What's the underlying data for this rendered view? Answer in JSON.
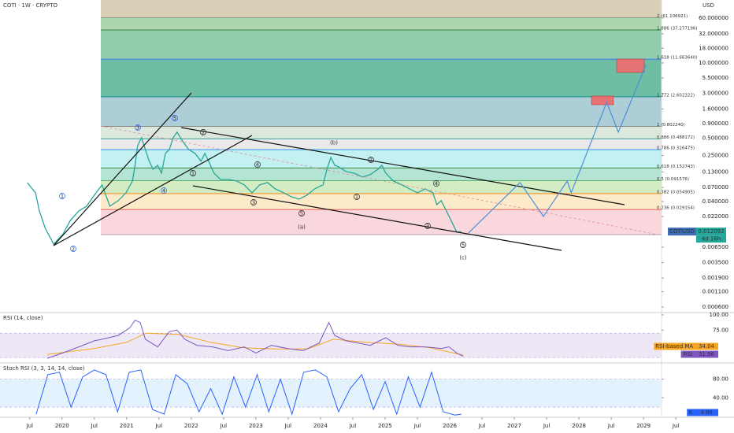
{
  "chart_data": [
    {
      "type": "line",
      "title": "COTI · 1W · CRYPTO",
      "currency": "USD",
      "log_scale": true,
      "xlim": [
        2019.04,
        2030.4
      ],
      "xticks": [
        {
          "value": 2019.5,
          "label": "Jul"
        },
        2020,
        {
          "value": 2020.5,
          "label": "Jul"
        },
        2021,
        {
          "value": 2021.5,
          "label": "Jul"
        },
        2022,
        {
          "value": 2022.5,
          "label": "Jul"
        },
        2023,
        {
          "value": 2023.5,
          "label": "Jul"
        },
        2024,
        {
          "value": 2024.5,
          "label": "Jul"
        },
        2025,
        {
          "value": 2025.5,
          "label": "Jul"
        },
        2026,
        {
          "value": 2026.5,
          "label": "Jul"
        },
        2027,
        {
          "value": 2027.5,
          "label": "Jul"
        },
        2028,
        {
          "value": 2028.5,
          "label": "Jul"
        },
        2029,
        {
          "value": 2029.5,
          "label": "Jul"
        }
      ],
      "ylim": [
        0.00048,
        123
      ],
      "yticks": [
        {
          "value": 60,
          "label": "60.000000"
        },
        {
          "value": 32,
          "label": "32.000000"
        },
        {
          "value": 18,
          "label": "18.000000"
        },
        {
          "value": 10,
          "label": "10.000000"
        },
        {
          "value": 5.5,
          "label": "5.500000"
        },
        {
          "value": 3,
          "label": "3.000000"
        },
        {
          "value": 1.6,
          "label": "1.600000"
        },
        {
          "value": 0.9,
          "label": "0.900000"
        },
        {
          "value": 0.5,
          "label": "0.500000"
        },
        {
          "value": 0.25,
          "label": "0.250000"
        },
        {
          "value": 0.13,
          "label": "0.130000"
        },
        {
          "value": 0.07,
          "label": "0.070000"
        },
        {
          "value": 0.04,
          "label": "0.040000"
        },
        {
          "value": 0.022,
          "label": "0.022000"
        },
        {
          "value": 0.0065,
          "label": "0.006500"
        },
        {
          "value": 0.0035,
          "label": "0.003500"
        },
        {
          "value": 0.0019,
          "label": "0.001900"
        },
        {
          "value": 0.0011,
          "label": "0.001100"
        },
        {
          "value": 0.0006,
          "label": "0.000600"
        }
      ],
      "series": [
        {
          "name": "COTIUSD",
          "color": "#26a69a",
          "x": [
            2019.46,
            2019.59,
            2019.65,
            2019.74,
            2019.87,
            2020.01,
            2020.13,
            2020.26,
            2020.38,
            2020.5,
            2020.62,
            2020.74,
            2020.87,
            2020.99,
            2021.09,
            2021.13,
            2021.17,
            2021.23,
            2021.29,
            2021.35,
            2021.41,
            2021.48,
            2021.54,
            2021.6,
            2021.66,
            2021.72,
            2021.78,
            2021.87,
            2021.96,
            2022.06,
            2022.15,
            2022.21,
            2022.27,
            2022.35,
            2022.45,
            2022.57,
            2022.7,
            2022.82,
            2022.94,
            2023.06,
            2023.18,
            2023.3,
            2023.43,
            2023.55,
            2023.67,
            2023.79,
            2023.91,
            2024.04,
            2024.1,
            2024.16,
            2024.22,
            2024.28,
            2024.4,
            2024.52,
            2024.65,
            2024.77,
            2024.89,
            2024.95,
            2025.01,
            2025.13,
            2025.26,
            2025.38,
            2025.5,
            2025.62,
            2025.74,
            2025.8,
            2025.87,
            2025.93,
            2025.99,
            2026.05,
            2026.11,
            2026.18
          ],
          "values": [
            0.0853,
            0.0567,
            0.0275,
            0.0138,
            0.00738,
            0.0107,
            0.0189,
            0.0275,
            0.0333,
            0.0516,
            0.0777,
            0.0333,
            0.0414,
            0.0567,
            0.0908,
            0.17,
            0.372,
            0.509,
            0.318,
            0.199,
            0.145,
            0.17,
            0.124,
            0.272,
            0.318,
            0.509,
            0.634,
            0.435,
            0.318,
            0.272,
            0.199,
            0.272,
            0.199,
            0.124,
            0.0966,
            0.0966,
            0.0908,
            0.0777,
            0.0567,
            0.0777,
            0.0853,
            0.0664,
            0.0567,
            0.0484,
            0.0441,
            0.0516,
            0.0664,
            0.0777,
            0.145,
            0.232,
            0.17,
            0.16,
            0.132,
            0.124,
            0.106,
            0.117,
            0.145,
            0.17,
            0.124,
            0.0908,
            0.0777,
            0.0664,
            0.0567,
            0.0664,
            0.0567,
            0.0354,
            0.0414,
            0.0303,
            0.0221,
            0.0162,
            0.0118,
            0.0121
          ]
        }
      ],
      "last_price": 0.012092,
      "countdown": "4d 16h",
      "projection": {
        "color": "#4a90d9",
        "x": [
          2026.29,
          2027.09,
          2027.45,
          2027.82,
          2027.88,
          2028.43,
          2028.61,
          2029.04
        ],
        "values": [
          0.01146,
          0.0853,
          0.0221,
          0.0908,
          0.0567,
          2.09,
          0.634,
          9.42
        ]
      },
      "fib_top_fill": "#d9cfb6",
      "fib_levels": [
        {
          "label": "2 (61.106921)",
          "price": 61.106921,
          "color": "#888888",
          "fill": "#9dcf9f"
        },
        {
          "label": "1.886 (37.277196)",
          "price": 37.277196,
          "color": "#2e7d32",
          "fill": "#80c4a0"
        },
        {
          "label": "1.618 (11.663640)",
          "price": 11.66364,
          "color": "#2962ff",
          "fill": "#55b295"
        },
        {
          "label": "1.272 (2.602322)",
          "price": 2.602322,
          "color": "#00897b",
          "fill": "#9fc4d0"
        },
        {
          "label": "1 (0.802240)",
          "price": 0.80224,
          "color": "#777777",
          "fill": "#d6e4d6"
        },
        {
          "label": "0.886 (0.488172)",
          "price": 0.488172,
          "color": "#00897b",
          "fill": "#e6e6e6"
        },
        {
          "label": "0.786 (0.316475)",
          "price": 0.316475,
          "color": "#1e88e5",
          "fill": "#b9eded"
        },
        {
          "label": "0.618 (0.152743)",
          "price": 0.152743,
          "color": "#2e7d32",
          "fill": "#a7e0cc"
        },
        {
          "label": "0.5 (0.091576)",
          "price": 0.091576,
          "color": "#43a047",
          "fill": "#cbe9b8"
        },
        {
          "label": "0.382 (0.054905)",
          "price": 0.054905,
          "color": "#f57c00",
          "fill": "#fde6bf"
        },
        {
          "label": "0.236 (0.029154)",
          "price": 0.029154,
          "color": "#e53935",
          "fill": "#f9d0d7"
        },
        {
          "price": 0.0107,
          "color": "#999999"
        }
      ],
      "annotations": [
        {
          "text": "1",
          "color": "#2962ff"
        },
        {
          "text": "2",
          "color": "#2962ff"
        },
        {
          "text": "3",
          "color": "#2962ff"
        },
        {
          "text": "4",
          "color": "#2962ff"
        },
        {
          "text": "5",
          "color": "#2962ff"
        },
        {
          "text": "1",
          "color": "#222222"
        },
        {
          "text": "2",
          "color": "#222222"
        },
        {
          "text": "3",
          "color": "#222222"
        },
        {
          "text": "4",
          "color": "#222222"
        },
        {
          "text": "5",
          "color": "#222222"
        },
        {
          "text": "(a)",
          "color": "#e53935"
        },
        {
          "text": "(b)",
          "color": "#e53935"
        },
        {
          "text": "1",
          "color": "#222222"
        },
        {
          "text": "2",
          "color": "#222222"
        },
        {
          "text": "3",
          "color": "#222222"
        },
        {
          "text": "4",
          "color": "#222222"
        },
        {
          "text": "5",
          "color": "#222222"
        },
        {
          "text": "(c)",
          "color": "#e53935"
        }
      ]
    },
    {
      "type": "line",
      "title": "RSI (14, close)",
      "ylim": [
        22.5,
        102.5
      ],
      "yticks": [
        {
          "value": 100,
          "label": "100.00"
        },
        {
          "value": 75,
          "label": "75.00"
        }
      ],
      "band": [
        30,
        70
      ],
      "band_color": "#ede7f6",
      "series": [
        {
          "name": "RSI",
          "color": "#7e57c2",
          "label_text_color": "#ffffff",
          "x": [
            2019.77,
            2020.01,
            2020.26,
            2020.5,
            2020.62,
            2020.87,
            2021.05,
            2021.13,
            2021.21,
            2021.29,
            2021.48,
            2021.66,
            2021.78,
            2021.9,
            2022.09,
            2022.33,
            2022.57,
            2022.82,
            2023.0,
            2023.24,
            2023.49,
            2023.73,
            2023.98,
            2024.13,
            2024.22,
            2024.4,
            2024.77,
            2025.01,
            2025.2,
            2025.38,
            2025.62,
            2025.87,
            2025.99,
            2026.11,
            2026.21
          ],
          "values": [
            28.8,
            37.5,
            47.5,
            57.5,
            60,
            66.3,
            78.8,
            91.3,
            87.5,
            60,
            47.5,
            72.5,
            75,
            60,
            50,
            47.5,
            41.3,
            47.5,
            37.5,
            50,
            45,
            41.3,
            53.8,
            87.5,
            66.3,
            57.5,
            50,
            62.5,
            50,
            47.5,
            47.5,
            45,
            47.5,
            37.5,
            31.96
          ]
        },
        {
          "name": "RSI-based MA",
          "color": "#f5a623",
          "label_text_color": "#222222",
          "x": [
            2019.77,
            2020.5,
            2021.0,
            2021.3,
            2021.8,
            2022.3,
            2022.8,
            2023.3,
            2023.8,
            2024.2,
            2024.7,
            2025.2,
            2025.7,
            2026.21
          ],
          "values": [
            35,
            45,
            55,
            70,
            68,
            55,
            46,
            44,
            44,
            60,
            55,
            52,
            46,
            34.04
          ]
        }
      ]
    },
    {
      "type": "line",
      "title": "Stoch RSI (3, 3, 14, 14, close)",
      "ylim": [
        -1.67,
        113.3
      ],
      "yticks": [
        {
          "value": 80,
          "label": "80.00"
        },
        {
          "value": 40,
          "label": "40.00"
        }
      ],
      "band": [
        20,
        80
      ],
      "band_color": "#e3f2fd",
      "series": [
        {
          "name": "K",
          "color": "#2962ff",
          "label_text_color": "#ffffff",
          "x": [
            2019.6,
            2019.78,
            2019.96,
            2020.14,
            2020.32,
            2020.5,
            2020.68,
            2020.86,
            2021.04,
            2021.22,
            2021.4,
            2021.58,
            2021.76,
            2021.94,
            2022.12,
            2022.3,
            2022.48,
            2022.66,
            2022.84,
            2023.02,
            2023.2,
            2023.38,
            2023.56,
            2023.74,
            2023.92,
            2024.1,
            2024.28,
            2024.46,
            2024.64,
            2024.82,
            2025.0,
            2025.18,
            2025.36,
            2025.54,
            2025.72,
            2025.9,
            2026.08,
            2026.18
          ],
          "values": [
            5,
            90,
            95,
            20,
            85,
            100,
            90,
            10,
            95,
            100,
            15,
            5,
            90,
            70,
            10,
            60,
            5,
            85,
            20,
            90,
            10,
            80,
            5,
            95,
            100,
            85,
            10,
            60,
            90,
            15,
            75,
            5,
            85,
            20,
            95,
            10,
            3,
            4.88
          ]
        }
      ]
    }
  ]
}
